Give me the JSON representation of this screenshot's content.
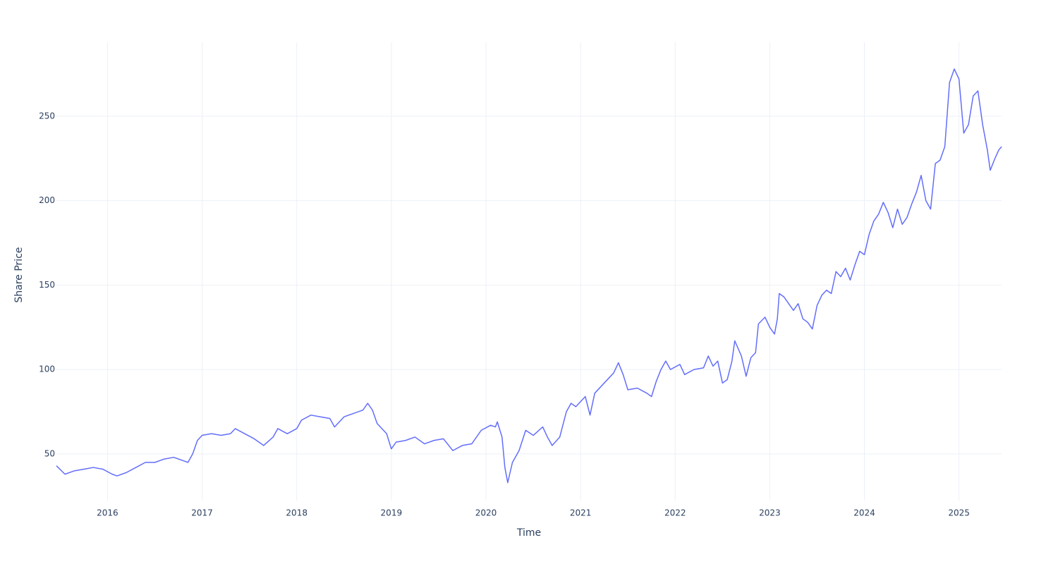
{
  "chart_data": {
    "type": "line",
    "x_label": "Time",
    "y_label": "Share Price",
    "color": "#636efa",
    "grid": true,
    "xlim": [
      2015.46,
      2025.45
    ],
    "xticks": [
      2016,
      2017,
      2018,
      2019,
      2020,
      2021,
      2022,
      2023,
      2024,
      2025
    ],
    "ylim": [
      22.4,
      293.8
    ],
    "yticks": [
      50,
      100,
      150,
      200,
      250
    ],
    "x": [
      2015.46,
      2015.55,
      2015.65,
      2015.75,
      2015.85,
      2015.95,
      2016.05,
      2016.1,
      2016.2,
      2016.3,
      2016.4,
      2016.5,
      2016.6,
      2016.7,
      2016.8,
      2016.85,
      2016.9,
      2016.95,
      2017.0,
      2017.1,
      2017.2,
      2017.3,
      2017.35,
      2017.45,
      2017.55,
      2017.65,
      2017.75,
      2017.8,
      2017.9,
      2018.0,
      2018.05,
      2018.15,
      2018.25,
      2018.35,
      2018.4,
      2018.5,
      2018.6,
      2018.7,
      2018.75,
      2018.8,
      2018.85,
      2018.95,
      2019.0,
      2019.05,
      2019.15,
      2019.25,
      2019.35,
      2019.45,
      2019.55,
      2019.65,
      2019.75,
      2019.85,
      2019.95,
      2020.05,
      2020.1,
      2020.12,
      2020.17,
      2020.2,
      2020.23,
      2020.28,
      2020.35,
      2020.42,
      2020.5,
      2020.6,
      2020.65,
      2020.7,
      2020.78,
      2020.85,
      2020.9,
      2020.95,
      2021.05,
      2021.1,
      2021.15,
      2021.25,
      2021.35,
      2021.4,
      2021.45,
      2021.5,
      2021.6,
      2021.7,
      2021.75,
      2021.8,
      2021.85,
      2021.9,
      2021.95,
      2022.05,
      2022.1,
      2022.2,
      2022.3,
      2022.35,
      2022.4,
      2022.45,
      2022.5,
      2022.55,
      2022.6,
      2022.63,
      2022.7,
      2022.75,
      2022.8,
      2022.85,
      2022.88,
      2022.95,
      2023.0,
      2023.05,
      2023.08,
      2023.1,
      2023.15,
      2023.25,
      2023.3,
      2023.35,
      2023.4,
      2023.45,
      2023.5,
      2023.55,
      2023.6,
      2023.65,
      2023.7,
      2023.75,
      2023.8,
      2023.85,
      2023.9,
      2023.95,
      2024.0,
      2024.05,
      2024.1,
      2024.15,
      2024.2,
      2024.25,
      2024.3,
      2024.35,
      2024.4,
      2024.45,
      2024.5,
      2024.55,
      2024.6,
      2024.65,
      2024.7,
      2024.75,
      2024.8,
      2024.85,
      2024.9,
      2024.95,
      2025.0,
      2025.05,
      2025.1,
      2025.15,
      2025.2,
      2025.25,
      2025.3,
      2025.33,
      2025.38,
      2025.42,
      2025.45
    ],
    "values": [
      43,
      38,
      40,
      41,
      42,
      41,
      38,
      37,
      39,
      42,
      45,
      45,
      47,
      48,
      46,
      45,
      50,
      58,
      61,
      62,
      61,
      62,
      65,
      62,
      59,
      55,
      60,
      65,
      62,
      65,
      70,
      73,
      72,
      71,
      66,
      72,
      74,
      76,
      80,
      76,
      68,
      62,
      53,
      57,
      58,
      60,
      56,
      58,
      59,
      52,
      55,
      56,
      64,
      67,
      66,
      69,
      60,
      42,
      33,
      45,
      52,
      64,
      61,
      66,
      60,
      55,
      60,
      75,
      80,
      78,
      84,
      73,
      86,
      92,
      98,
      104,
      97,
      88,
      89,
      86,
      84,
      93,
      100,
      105,
      100,
      103,
      97,
      100,
      101,
      108,
      102,
      105,
      92,
      94,
      105,
      117,
      108,
      96,
      107,
      110,
      127,
      131,
      125,
      121,
      130,
      145,
      143,
      135,
      139,
      130,
      128,
      124,
      138,
      144,
      147,
      145,
      158,
      155,
      160,
      153,
      162,
      170,
      168,
      180,
      188,
      192,
      199,
      193,
      184,
      195,
      186,
      190,
      198,
      205,
      215,
      200,
      195,
      222,
      224,
      232,
      270,
      278,
      272,
      240,
      245,
      262,
      265,
      245,
      230,
      218,
      225,
      230,
      232
    ]
  }
}
